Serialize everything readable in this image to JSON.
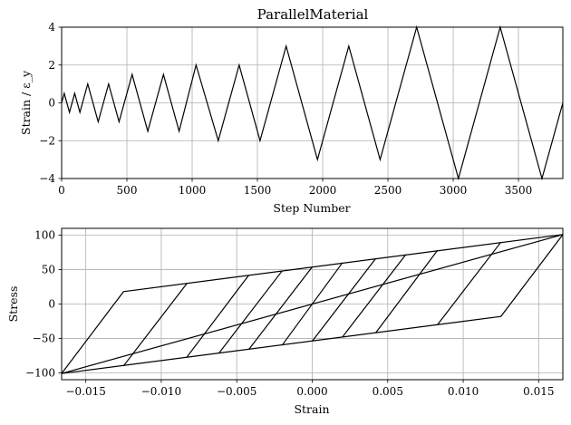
{
  "chart_data": [
    {
      "type": "line",
      "title": "ParallelMaterial",
      "xlabel": "Step Number",
      "ylabel": "Strain / ε_y",
      "xlim": [
        0,
        3840
      ],
      "ylim": [
        -4,
        4
      ],
      "grid": true,
      "xticks": [
        0,
        500,
        1000,
        1500,
        2000,
        2500,
        3000,
        3500
      ],
      "xtick_labels": [
        "0",
        "500",
        "1000",
        "1500",
        "2000",
        "2500",
        "3000",
        "3500"
      ],
      "yticks": [
        -4,
        -2,
        0,
        2,
        4
      ],
      "ytick_labels": [
        "−4",
        "−2",
        "0",
        "2",
        "4"
      ],
      "series": [
        {
          "x": [
            0,
            20,
            60,
            100,
            140,
            200,
            280,
            360,
            440,
            540,
            660,
            780,
            900,
            1030,
            1200,
            1360,
            1520,
            1720,
            1960,
            2200,
            2440,
            2720,
            3040,
            3360,
            3680,
            3840
          ],
          "y": [
            0,
            0.5,
            -0.5,
            0.5,
            -0.5,
            1,
            -1,
            1,
            -1,
            1.5,
            -1.5,
            1.5,
            -1.5,
            2,
            -2,
            2,
            -2,
            3,
            -3,
            3,
            -3,
            4,
            -4,
            4,
            -4,
            0
          ]
        }
      ]
    },
    {
      "type": "line",
      "title": "",
      "xlabel": "Strain",
      "ylabel": "Stress",
      "xlim": [
        -0.0166,
        0.0166
      ],
      "ylim": [
        -110,
        110
      ],
      "grid": true,
      "xticks": [
        -0.015,
        -0.01,
        -0.005,
        0.0,
        0.005,
        0.01,
        0.015
      ],
      "xtick_labels": [
        "−0.015",
        "−0.010",
        "−0.005",
        "0.000",
        "0.005",
        "0.010",
        "0.015"
      ],
      "yticks": [
        -100,
        -50,
        0,
        50,
        100
      ],
      "ytick_labels": [
        "−100",
        "−50",
        "0",
        "50",
        "100"
      ],
      "series": [
        {
          "x": [
            -0.0166,
            -0.0125,
            0.0166,
            -0.0166,
            0.0125,
            0.0166
          ],
          "y": [
            -101,
            18,
            101,
            -101,
            -18,
            101
          ]
        },
        {
          "x": [
            -0.0125,
            -0.0083
          ],
          "y": [
            -90,
            30
          ]
        },
        {
          "x": [
            -0.0083,
            -0.0042
          ],
          "y": [
            -77,
            42
          ]
        },
        {
          "x": [
            -0.0062,
            -0.002
          ],
          "y": [
            -72,
            48
          ]
        },
        {
          "x": [
            -0.0042,
            0.0
          ],
          "y": [
            -66,
            54
          ]
        },
        {
          "x": [
            -0.002,
            0.002
          ],
          "y": [
            -60,
            60
          ]
        },
        {
          "x": [
            0.0,
            0.0042
          ],
          "y": [
            -54,
            66
          ]
        },
        {
          "x": [
            0.002,
            0.0062
          ],
          "y": [
            -48,
            72
          ]
        },
        {
          "x": [
            0.0042,
            0.0083
          ],
          "y": [
            -42,
            78
          ]
        },
        {
          "x": [
            0.0083,
            0.0125
          ],
          "y": [
            -30,
            90
          ]
        }
      ]
    }
  ]
}
